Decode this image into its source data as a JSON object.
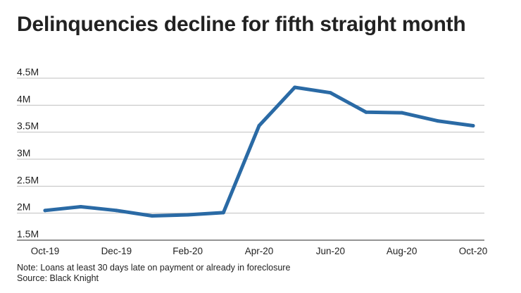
{
  "chart_data": {
    "type": "line",
    "title": "Delinquencies decline for fifth straight month",
    "xlabel": "",
    "ylabel": "",
    "x": [
      "Oct-19",
      "Nov-19",
      "Dec-19",
      "Jan-20",
      "Feb-20",
      "Mar-20",
      "Apr-20",
      "May-20",
      "Jun-20",
      "Jul-20",
      "Aug-20",
      "Sep-20",
      "Oct-20"
    ],
    "x_tick_labels": [
      "Oct-19",
      "Dec-19",
      "Feb-20",
      "Apr-20",
      "Jun-20",
      "Aug-20",
      "Oct-20"
    ],
    "series": [
      {
        "name": "Delinquencies",
        "values": [
          2.05,
          2.12,
          2.05,
          1.95,
          1.97,
          2.01,
          3.62,
          4.33,
          4.23,
          3.87,
          3.86,
          3.71,
          3.62
        ],
        "color": "#2a6aa5"
      }
    ],
    "y_ticks": [
      1.5,
      2,
      2.5,
      3,
      3.5,
      4,
      4.5
    ],
    "y_tick_labels": [
      "1.5M",
      "2M",
      "2.5M",
      "3M",
      "3.5M",
      "4M",
      "4.5M"
    ],
    "ylim": [
      1.5,
      4.5
    ],
    "grid": true,
    "gridline_color": "#bfbfbf"
  },
  "footer": {
    "note": "Note: Loans at least 30 days late on payment or already in foreclosure",
    "source": "Source: Black Knight"
  }
}
